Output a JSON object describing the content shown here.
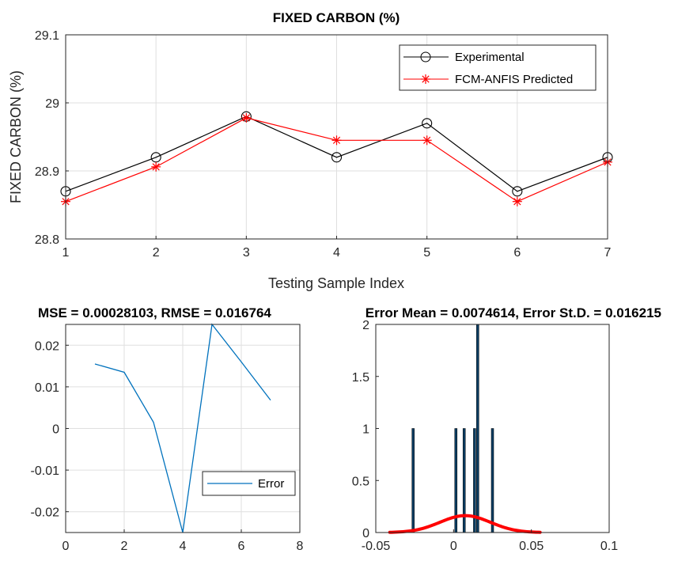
{
  "chart_data": [
    {
      "type": "line",
      "title": "FIXED CARBON (%)",
      "xlabel": "Testing Sample Index",
      "ylabel": "FIXED CARBON (%)",
      "xlim": [
        1,
        7
      ],
      "ylim": [
        28.8,
        29.1
      ],
      "xticks": [
        "1",
        "2",
        "3",
        "4",
        "5",
        "6",
        "7"
      ],
      "yticks": [
        "28.8",
        "28.9",
        "29",
        "29.1"
      ],
      "grid": true,
      "legend_position": "top-right",
      "x": [
        1,
        2,
        3,
        4,
        5,
        6,
        7
      ],
      "series": [
        {
          "name": "Experimental",
          "color": "#000000",
          "marker": "circle",
          "values": [
            28.87,
            28.92,
            28.98,
            28.92,
            28.97,
            28.87,
            28.92
          ]
        },
        {
          "name": "FCM-ANFIS Predicted",
          "color": "#ff0000",
          "marker": "asterisk",
          "values": [
            28.855,
            28.906,
            28.978,
            28.945,
            28.945,
            28.855,
            28.913
          ]
        }
      ]
    },
    {
      "type": "line",
      "title": "MSE = 0.00028103, RMSE = 0.016764",
      "xlim": [
        0,
        8
      ],
      "ylim": [
        -0.025,
        0.025
      ],
      "xticks": [
        "0",
        "2",
        "4",
        "6",
        "8"
      ],
      "yticks": [
        "-0.02",
        "-0.01",
        "0",
        "0.01",
        "0.02"
      ],
      "grid": true,
      "legend_position": "bottom-right",
      "x": [
        1,
        2,
        3,
        4,
        5,
        6,
        7
      ],
      "series": [
        {
          "name": "Error",
          "color": "#0072bd",
          "values": [
            0.0155,
            0.0135,
            0.0015,
            -0.026,
            0.025,
            0.016,
            0.0068
          ]
        }
      ]
    },
    {
      "type": "bar",
      "title": "Error Mean = 0.0074614, Error St.D. = 0.016215",
      "xlim": [
        -0.05,
        0.1
      ],
      "ylim": [
        0,
        2
      ],
      "xticks": [
        "-0.05",
        "0",
        "0.05",
        "0.1"
      ],
      "yticks": [
        "0",
        "0.5",
        "1",
        "1.5",
        "2"
      ],
      "grid": false,
      "bins": [
        {
          "x": -0.026,
          "count": 1
        },
        {
          "x": 0.0015,
          "count": 1
        },
        {
          "x": 0.0068,
          "count": 1
        },
        {
          "x": 0.0135,
          "count": 1
        },
        {
          "x": 0.0155,
          "count": 2
        },
        {
          "x": 0.025,
          "count": 1
        }
      ],
      "bar_color": "#0a3d62",
      "curve": {
        "type": "normal",
        "mean": 0.0074614,
        "std": 0.016215,
        "x_range": [
          -0.041,
          0.0556
        ],
        "color": "#ff0000"
      }
    }
  ]
}
